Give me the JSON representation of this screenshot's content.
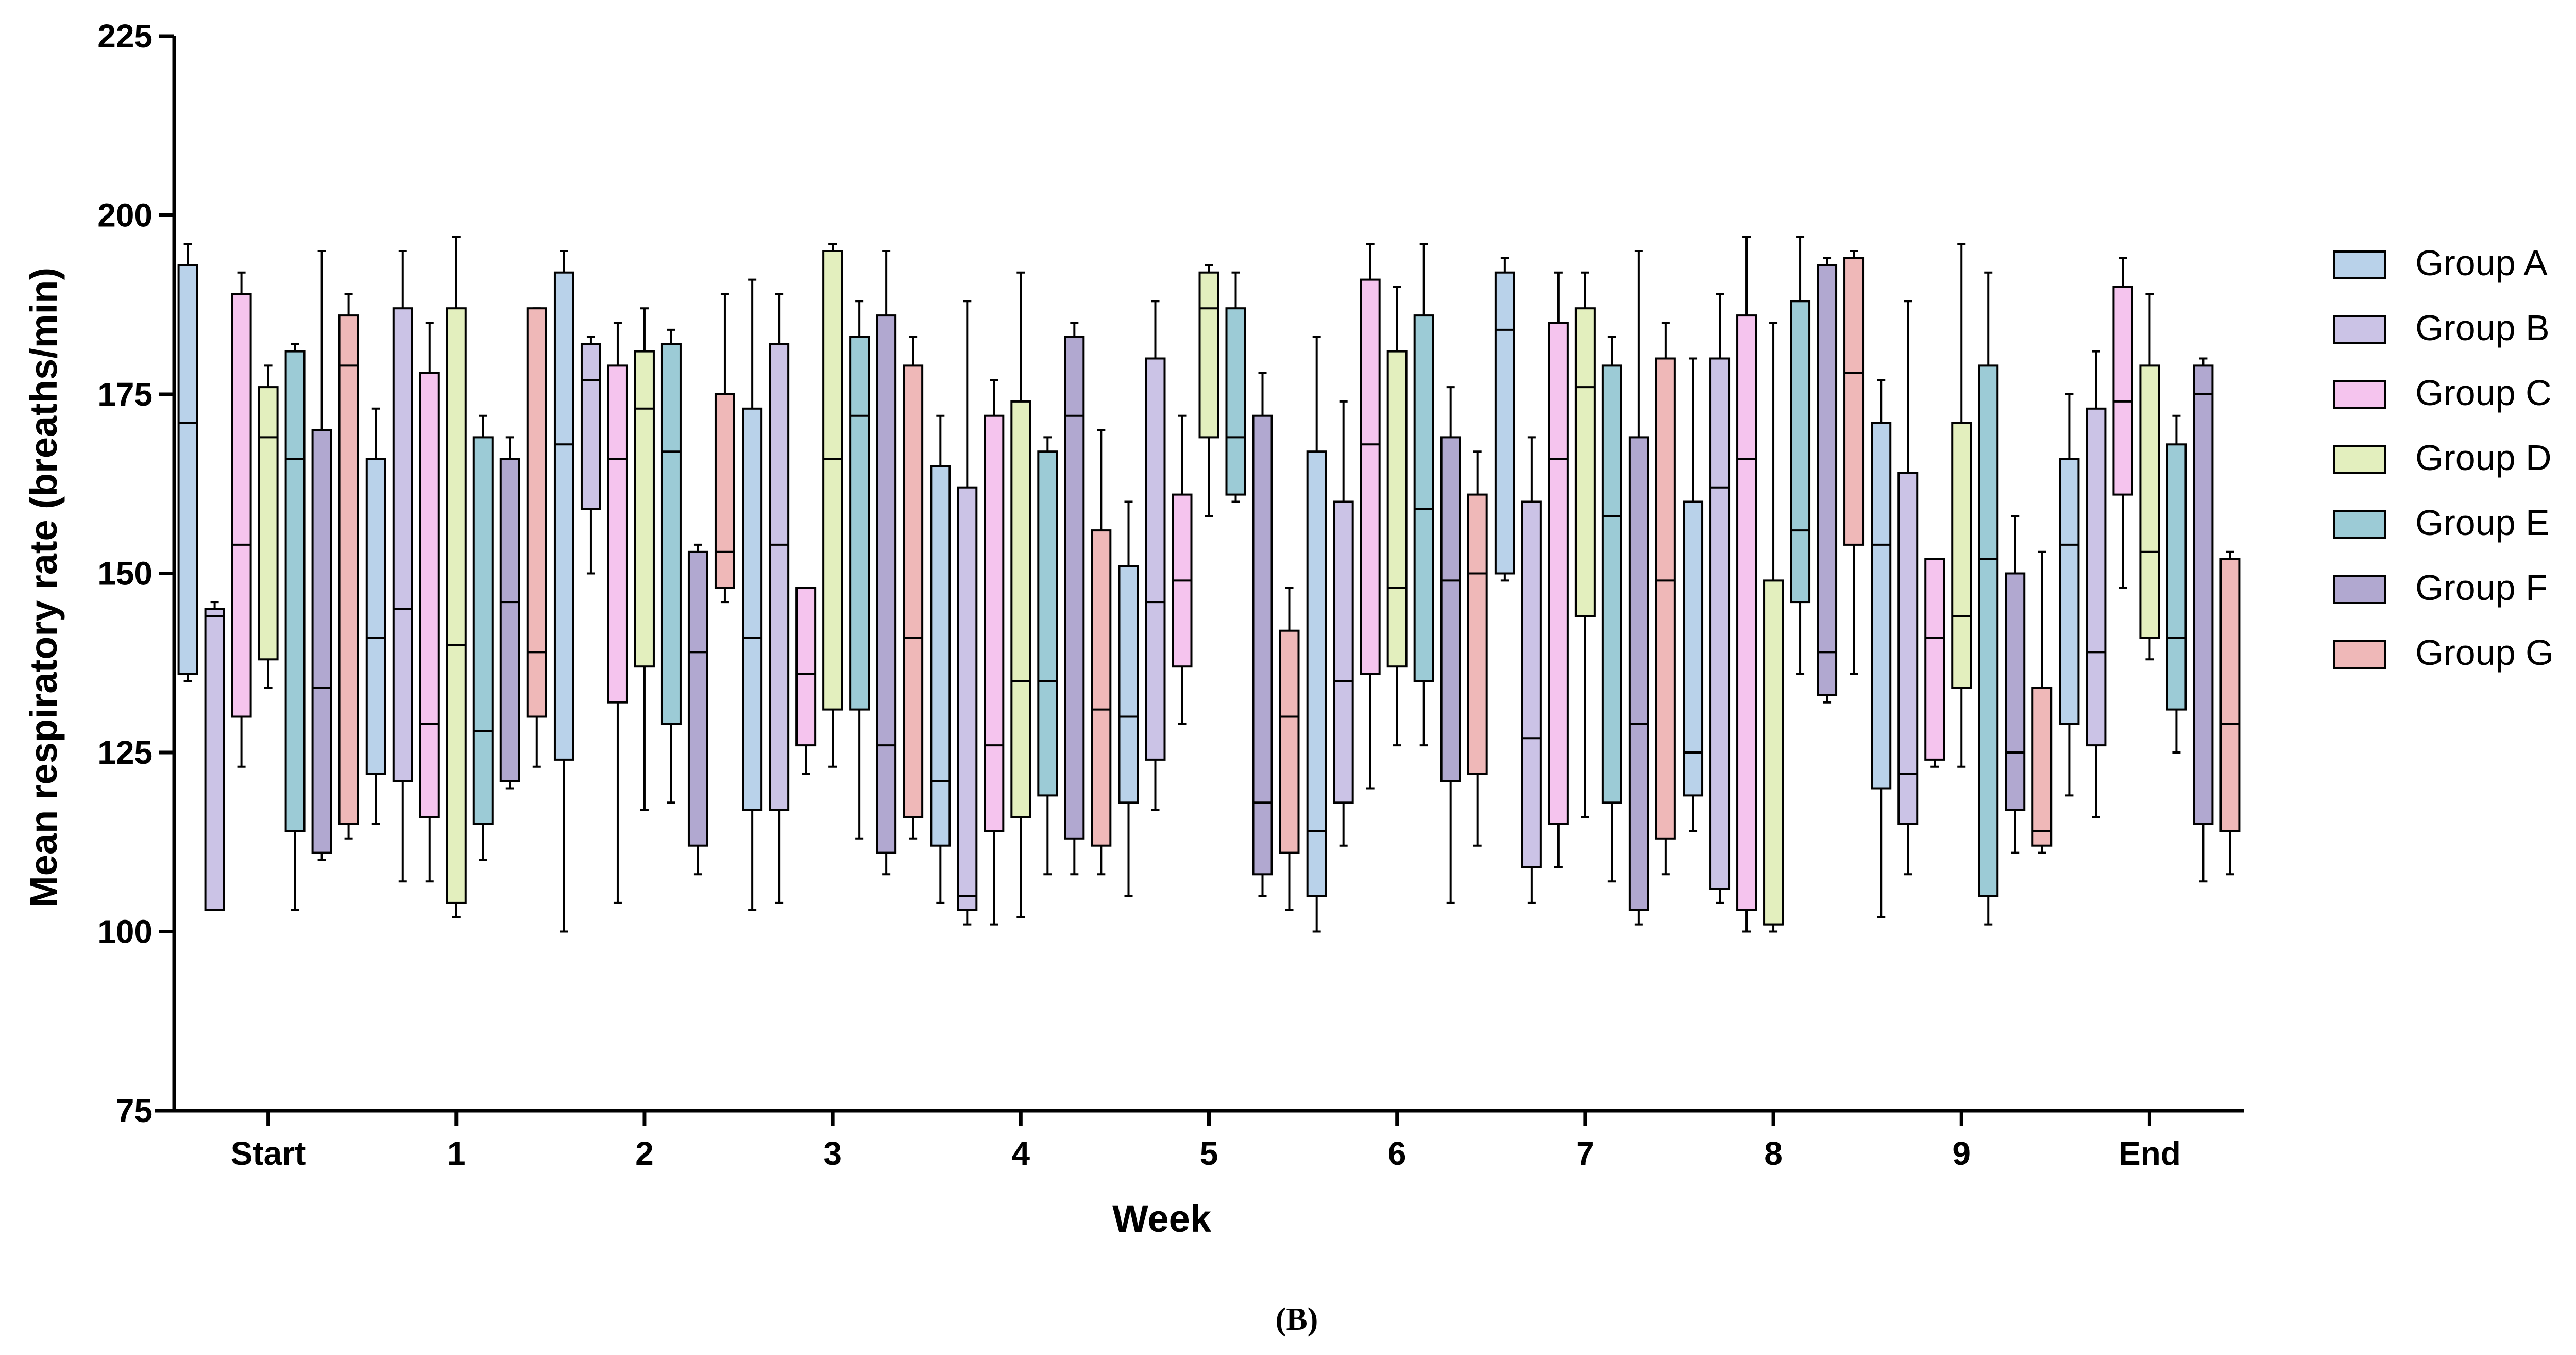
{
  "chart_data": {
    "type": "box",
    "xlabel": "Week",
    "ylabel": "Mean respiratory rate (breaths/min)",
    "ylim": [
      75,
      225
    ],
    "yticks": [
      75,
      100,
      125,
      150,
      175,
      200,
      225
    ],
    "categories": [
      "Start",
      "1",
      "2",
      "3",
      "4",
      "5",
      "6",
      "7",
      "8",
      "9",
      "End"
    ],
    "legend_position": "right",
    "series": [
      {
        "name": "Group A",
        "color": "#b9d2ea",
        "boxes": [
          {
            "min": 135,
            "q1": 136,
            "median": 171,
            "q3": 193,
            "max": 196
          },
          {
            "min": 115,
            "q1": 122,
            "median": 141,
            "q3": 166,
            "max": 173
          },
          {
            "min": 100,
            "q1": 124,
            "median": 168,
            "q3": 192,
            "max": 195
          },
          {
            "min": 103,
            "q1": 117,
            "median": 141,
            "q3": 173,
            "max": 191
          },
          {
            "min": 104,
            "q1": 112,
            "median": 121,
            "q3": 165,
            "max": 172
          },
          {
            "min": 105,
            "q1": 118,
            "median": 130,
            "q3": 151,
            "max": 160
          },
          {
            "min": 100,
            "q1": 105,
            "median": 114,
            "q3": 167,
            "max": 183
          },
          {
            "min": 149,
            "q1": 150,
            "median": 184,
            "q3": 192,
            "max": 194
          },
          {
            "min": 114,
            "q1": 119,
            "median": 125,
            "q3": 160,
            "max": 180
          },
          {
            "min": 102,
            "q1": 120,
            "median": 154,
            "q3": 171,
            "max": 177
          },
          {
            "min": 119,
            "q1": 129,
            "median": 154,
            "q3": 166,
            "max": 175
          }
        ]
      },
      {
        "name": "Group B",
        "color": "#cbc3e6",
        "boxes": [
          {
            "min": 103,
            "q1": 103,
            "median": 144,
            "q3": 145,
            "max": 146
          },
          {
            "min": 107,
            "q1": 121,
            "median": 145,
            "q3": 187,
            "max": 195
          },
          {
            "min": 150,
            "q1": 159,
            "median": 177,
            "q3": 182,
            "max": 183
          },
          {
            "min": 104,
            "q1": 117,
            "median": 154,
            "q3": 182,
            "max": 189
          },
          {
            "min": 101,
            "q1": 103,
            "median": 105,
            "q3": 162,
            "max": 188
          },
          {
            "min": 117,
            "q1": 124,
            "median": 146,
            "q3": 180,
            "max": 188
          },
          {
            "min": 112,
            "q1": 118,
            "median": 135,
            "q3": 160,
            "max": 174
          },
          {
            "min": 104,
            "q1": 109,
            "median": 127,
            "q3": 160,
            "max": 169
          },
          {
            "min": 104,
            "q1": 106,
            "median": 162,
            "q3": 180,
            "max": 189
          },
          {
            "min": 108,
            "q1": 115,
            "median": 122,
            "q3": 164,
            "max": 188
          },
          {
            "min": 116,
            "q1": 126,
            "median": 139,
            "q3": 173,
            "max": 181
          }
        ]
      },
      {
        "name": "Group C",
        "color": "#f5c4ee",
        "boxes": [
          {
            "min": 123,
            "q1": 130,
            "median": 154,
            "q3": 189,
            "max": 192
          },
          {
            "min": 107,
            "q1": 116,
            "median": 129,
            "q3": 178,
            "max": 185
          },
          {
            "min": 104,
            "q1": 132,
            "median": 166,
            "q3": 179,
            "max": 185
          },
          {
            "min": 122,
            "q1": 126,
            "median": 136,
            "q3": 148,
            "max": 148
          },
          {
            "min": 101,
            "q1": 114,
            "median": 126,
            "q3": 172,
            "max": 177
          },
          {
            "min": 129,
            "q1": 137,
            "median": 149,
            "q3": 161,
            "max": 172
          },
          {
            "min": 120,
            "q1": 136,
            "median": 168,
            "q3": 191,
            "max": 196
          },
          {
            "min": 109,
            "q1": 115,
            "median": 166,
            "q3": 185,
            "max": 192
          },
          {
            "min": 100,
            "q1": 103,
            "median": 166,
            "q3": 186,
            "max": 197
          },
          {
            "min": 123,
            "q1": 124,
            "median": 141,
            "q3": 152,
            "max": 152
          },
          {
            "min": 148,
            "q1": 161,
            "median": 174,
            "q3": 190,
            "max": 194
          }
        ]
      },
      {
        "name": "Group D",
        "color": "#e3efbe",
        "boxes": [
          {
            "min": 134,
            "q1": 138,
            "median": 169,
            "q3": 176,
            "max": 179
          },
          {
            "min": 102,
            "q1": 104,
            "median": 140,
            "q3": 187,
            "max": 197
          },
          {
            "min": 117,
            "q1": 137,
            "median": 173,
            "q3": 181,
            "max": 187
          },
          {
            "min": 123,
            "q1": 131,
            "median": 166,
            "q3": 195,
            "max": 196
          },
          {
            "min": 102,
            "q1": 116,
            "median": 135,
            "q3": 174,
            "max": 192
          },
          {
            "min": 158,
            "q1": 169,
            "median": 187,
            "q3": 192,
            "max": 193
          },
          {
            "min": 126,
            "q1": 137,
            "median": 148,
            "q3": 181,
            "max": 190
          },
          {
            "min": 116,
            "q1": 144,
            "median": 176,
            "q3": 187,
            "max": 192
          },
          {
            "min": 100,
            "q1": 101,
            "median": 101,
            "q3": 149,
            "max": 185
          },
          {
            "min": 123,
            "q1": 134,
            "median": 144,
            "q3": 171,
            "max": 196
          },
          {
            "min": 138,
            "q1": 141,
            "median": 153,
            "q3": 179,
            "max": 189
          }
        ]
      },
      {
        "name": "Group E",
        "color": "#9ccbd6",
        "boxes": [
          {
            "min": 103,
            "q1": 114,
            "median": 166,
            "q3": 181,
            "max": 182
          },
          {
            "min": 110,
            "q1": 115,
            "median": 128,
            "q3": 169,
            "max": 172
          },
          {
            "min": 118,
            "q1": 129,
            "median": 167,
            "q3": 182,
            "max": 184
          },
          {
            "min": 113,
            "q1": 131,
            "median": 172,
            "q3": 183,
            "max": 188
          },
          {
            "min": 108,
            "q1": 119,
            "median": 135,
            "q3": 167,
            "max": 169
          },
          {
            "min": 160,
            "q1": 161,
            "median": 169,
            "q3": 187,
            "max": 192
          },
          {
            "min": 126,
            "q1": 135,
            "median": 159,
            "q3": 186,
            "max": 196
          },
          {
            "min": 107,
            "q1": 118,
            "median": 158,
            "q3": 179,
            "max": 183
          },
          {
            "min": 136,
            "q1": 146,
            "median": 156,
            "q3": 188,
            "max": 197
          },
          {
            "min": 101,
            "q1": 105,
            "median": 152,
            "q3": 179,
            "max": 192
          },
          {
            "min": 125,
            "q1": 131,
            "median": 141,
            "q3": 168,
            "max": 172
          }
        ]
      },
      {
        "name": "Group F",
        "color": "#b1a8d0",
        "boxes": [
          {
            "min": 110,
            "q1": 111,
            "median": 134,
            "q3": 170,
            "max": 195
          },
          {
            "min": 120,
            "q1": 121,
            "median": 146,
            "q3": 166,
            "max": 169
          },
          {
            "min": 108,
            "q1": 112,
            "median": 139,
            "q3": 153,
            "max": 154
          },
          {
            "min": 108,
            "q1": 111,
            "median": 126,
            "q3": 186,
            "max": 195
          },
          {
            "min": 108,
            "q1": 113,
            "median": 172,
            "q3": 183,
            "max": 185
          },
          {
            "min": 105,
            "q1": 108,
            "median": 118,
            "q3": 172,
            "max": 178
          },
          {
            "min": 104,
            "q1": 121,
            "median": 149,
            "q3": 169,
            "max": 176
          },
          {
            "min": 101,
            "q1": 103,
            "median": 129,
            "q3": 169,
            "max": 195
          },
          {
            "min": 132,
            "q1": 133,
            "median": 139,
            "q3": 193,
            "max": 194
          },
          {
            "min": 111,
            "q1": 117,
            "median": 125,
            "q3": 150,
            "max": 158
          },
          {
            "min": 107,
            "q1": 115,
            "median": 175,
            "q3": 179,
            "max": 180
          }
        ]
      },
      {
        "name": "Group G",
        "color": "#efb8b8",
        "boxes": [
          {
            "min": 113,
            "q1": 115,
            "median": 179,
            "q3": 186,
            "max": 189
          },
          {
            "min": 123,
            "q1": 130,
            "median": 139,
            "q3": 187,
            "max": 187
          },
          {
            "min": 146,
            "q1": 148,
            "median": 153,
            "q3": 175,
            "max": 189
          },
          {
            "min": 113,
            "q1": 116,
            "median": 141,
            "q3": 179,
            "max": 183
          },
          {
            "min": 108,
            "q1": 112,
            "median": 131,
            "q3": 156,
            "max": 170
          },
          {
            "min": 103,
            "q1": 111,
            "median": 130,
            "q3": 142,
            "max": 148
          },
          {
            "min": 112,
            "q1": 122,
            "median": 150,
            "q3": 161,
            "max": 167
          },
          {
            "min": 108,
            "q1": 113,
            "median": 149,
            "q3": 180,
            "max": 185
          },
          {
            "min": 136,
            "q1": 154,
            "median": 178,
            "q3": 194,
            "max": 195
          },
          {
            "min": 111,
            "q1": 112,
            "median": 114,
            "q3": 134,
            "max": 153
          },
          {
            "min": 108,
            "q1": 114,
            "median": 129,
            "q3": 152,
            "max": 153
          }
        ]
      }
    ]
  },
  "panel_label": "(B)"
}
